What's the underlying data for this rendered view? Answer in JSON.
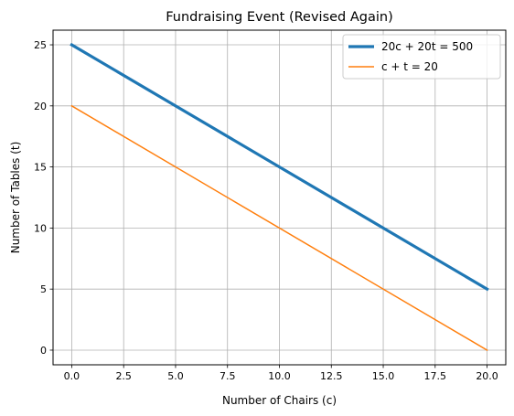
{
  "chart_data": {
    "type": "line",
    "title": "Fundraising Event (Revised Again)",
    "xlabel": "Number of Chairs (c)",
    "ylabel": "Number of Tables (t)",
    "xlim": [
      -0.9,
      20.9
    ],
    "ylim": [
      -1.2,
      26.2
    ],
    "xticks": [
      0.0,
      2.5,
      5.0,
      7.5,
      10.0,
      12.5,
      15.0,
      17.5,
      20.0
    ],
    "xtick_labels": [
      "0.0",
      "2.5",
      "5.0",
      "7.5",
      "10.0",
      "12.5",
      "15.0",
      "17.5",
      "20.0"
    ],
    "yticks": [
      0,
      5,
      10,
      15,
      20,
      25
    ],
    "ytick_labels": [
      "0",
      "5",
      "10",
      "15",
      "20",
      "25"
    ],
    "grid": true,
    "legend_position": "top-right",
    "series": [
      {
        "name": "20c + 20t = 500",
        "x": [
          0,
          20
        ],
        "y": [
          25,
          5
        ],
        "color": "#1f77b4",
        "emphasis": "thick"
      },
      {
        "name": "c + t = 20",
        "x": [
          0,
          20
        ],
        "y": [
          20,
          0
        ],
        "color": "#ff7f0e",
        "emphasis": "normal"
      }
    ]
  }
}
